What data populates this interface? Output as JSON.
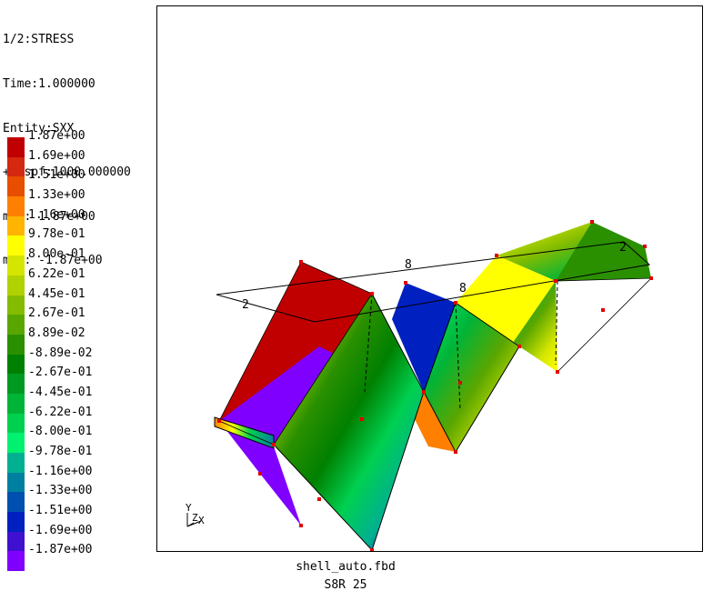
{
  "info": {
    "line1": "1/2:STRESS",
    "line2": "Time:1.000000",
    "line3": "Entity:SXX",
    "line4": "+Dispf:1000.000000",
    "line5": "max: 1.87e+00",
    "line6": "min: -1.87e+00"
  },
  "legend": [
    {
      "label": "1.87e+00",
      "color": "#c00000"
    },
    {
      "label": "1.69e+00",
      "color": "#d42810"
    },
    {
      "label": "1.51e+00",
      "color": "#e84e00"
    },
    {
      "label": "1.33e+00",
      "color": "#ff8000"
    },
    {
      "label": "1.16e+00",
      "color": "#ffb400"
    },
    {
      "label": "9.78e-01",
      "color": "#ffff00"
    },
    {
      "label": "8.00e-01",
      "color": "#d4e600"
    },
    {
      "label": "6.22e-01",
      "color": "#b0d200"
    },
    {
      "label": "4.45e-01",
      "color": "#84bc00"
    },
    {
      "label": "2.67e-01",
      "color": "#5aa600"
    },
    {
      "label": "8.89e-02",
      "color": "#2a9000"
    },
    {
      "label": "-8.89e-02",
      "color": "#008000"
    },
    {
      "label": "-2.67e-01",
      "color": "#009a20"
    },
    {
      "label": "-4.45e-01",
      "color": "#00b438"
    },
    {
      "label": "-6.22e-01",
      "color": "#00d050"
    },
    {
      "label": "-8.00e-01",
      "color": "#00f070"
    },
    {
      "label": "-9.78e-01",
      "color": "#00b090"
    },
    {
      "label": "-1.16e+00",
      "color": "#0080a0"
    },
    {
      "label": "-1.33e+00",
      "color": "#0050b0"
    },
    {
      "label": "-1.51e+00",
      "color": "#0020c0"
    },
    {
      "label": "-1.69e+00",
      "color": "#4010d0"
    },
    {
      "label": "-1.87e+00",
      "color": "#8000ff"
    }
  ],
  "viewport": {
    "axis_y_label": "Y",
    "axis_z_label": "Z",
    "axis_x_label": "X",
    "node_label_2a": "2",
    "node_label_8a": "8",
    "node_label_8b": "8",
    "node_label_2b": "2"
  },
  "footer": {
    "file": "shell_auto.fbd",
    "element": "S8R 25"
  }
}
